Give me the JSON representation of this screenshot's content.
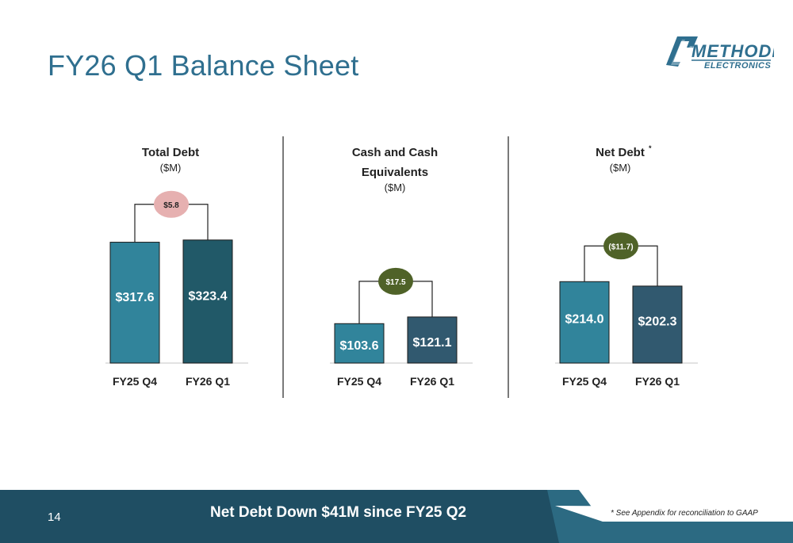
{
  "title": "FY26 Q1 Balance Sheet",
  "logo": {
    "word1": "METHODE",
    "word2": "ELECTRONICS"
  },
  "footer": {
    "page_number": "14",
    "tagline": "Net Debt Down $41M since FY25 Q2",
    "footnote": "* See Appendix for reconciliation to GAAP"
  },
  "colors": {
    "title": "#2f6f8f",
    "bar_prior": "#31849b",
    "bar_current_debt": "#215968",
    "bar_current_other": "#31596f",
    "delta_pink": "#e6b0b0",
    "delta_green": "#4f6228",
    "footer_dark": "#1f4e63",
    "footer_light": "#2c6a82"
  },
  "chart_data": [
    {
      "type": "bar",
      "title": "Total Debt",
      "title_lines": [
        "Total Debt"
      ],
      "unit": "($M)",
      "categories": [
        "FY25 Q4",
        "FY26 Q1"
      ],
      "values": [
        317.6,
        323.4
      ],
      "value_labels": [
        "$317.6",
        "$323.4"
      ],
      "delta_label": "$5.8",
      "delta_color": "pink",
      "ylim": [
        0,
        350
      ]
    },
    {
      "type": "bar",
      "title": "Cash and Cash Equivalents",
      "title_lines": [
        "Cash and Cash",
        "Equivalents"
      ],
      "unit": "($M)",
      "categories": [
        "FY25 Q4",
        "FY26 Q1"
      ],
      "values": [
        103.6,
        121.1
      ],
      "value_labels": [
        "$103.6",
        "$121.1"
      ],
      "delta_label": "$17.5",
      "delta_color": "green",
      "ylim": [
        0,
        350
      ]
    },
    {
      "type": "bar",
      "title": "Net Debt*",
      "title_lines": [
        "Net Debt"
      ],
      "title_mark": "*",
      "unit": "($M)",
      "categories": [
        "FY25 Q4",
        "FY26 Q1"
      ],
      "values": [
        214.0,
        202.3
      ],
      "value_labels": [
        "$214.0",
        "$202.3"
      ],
      "delta_label": "($11.7)",
      "delta_color": "green",
      "ylim": [
        0,
        350
      ]
    }
  ]
}
